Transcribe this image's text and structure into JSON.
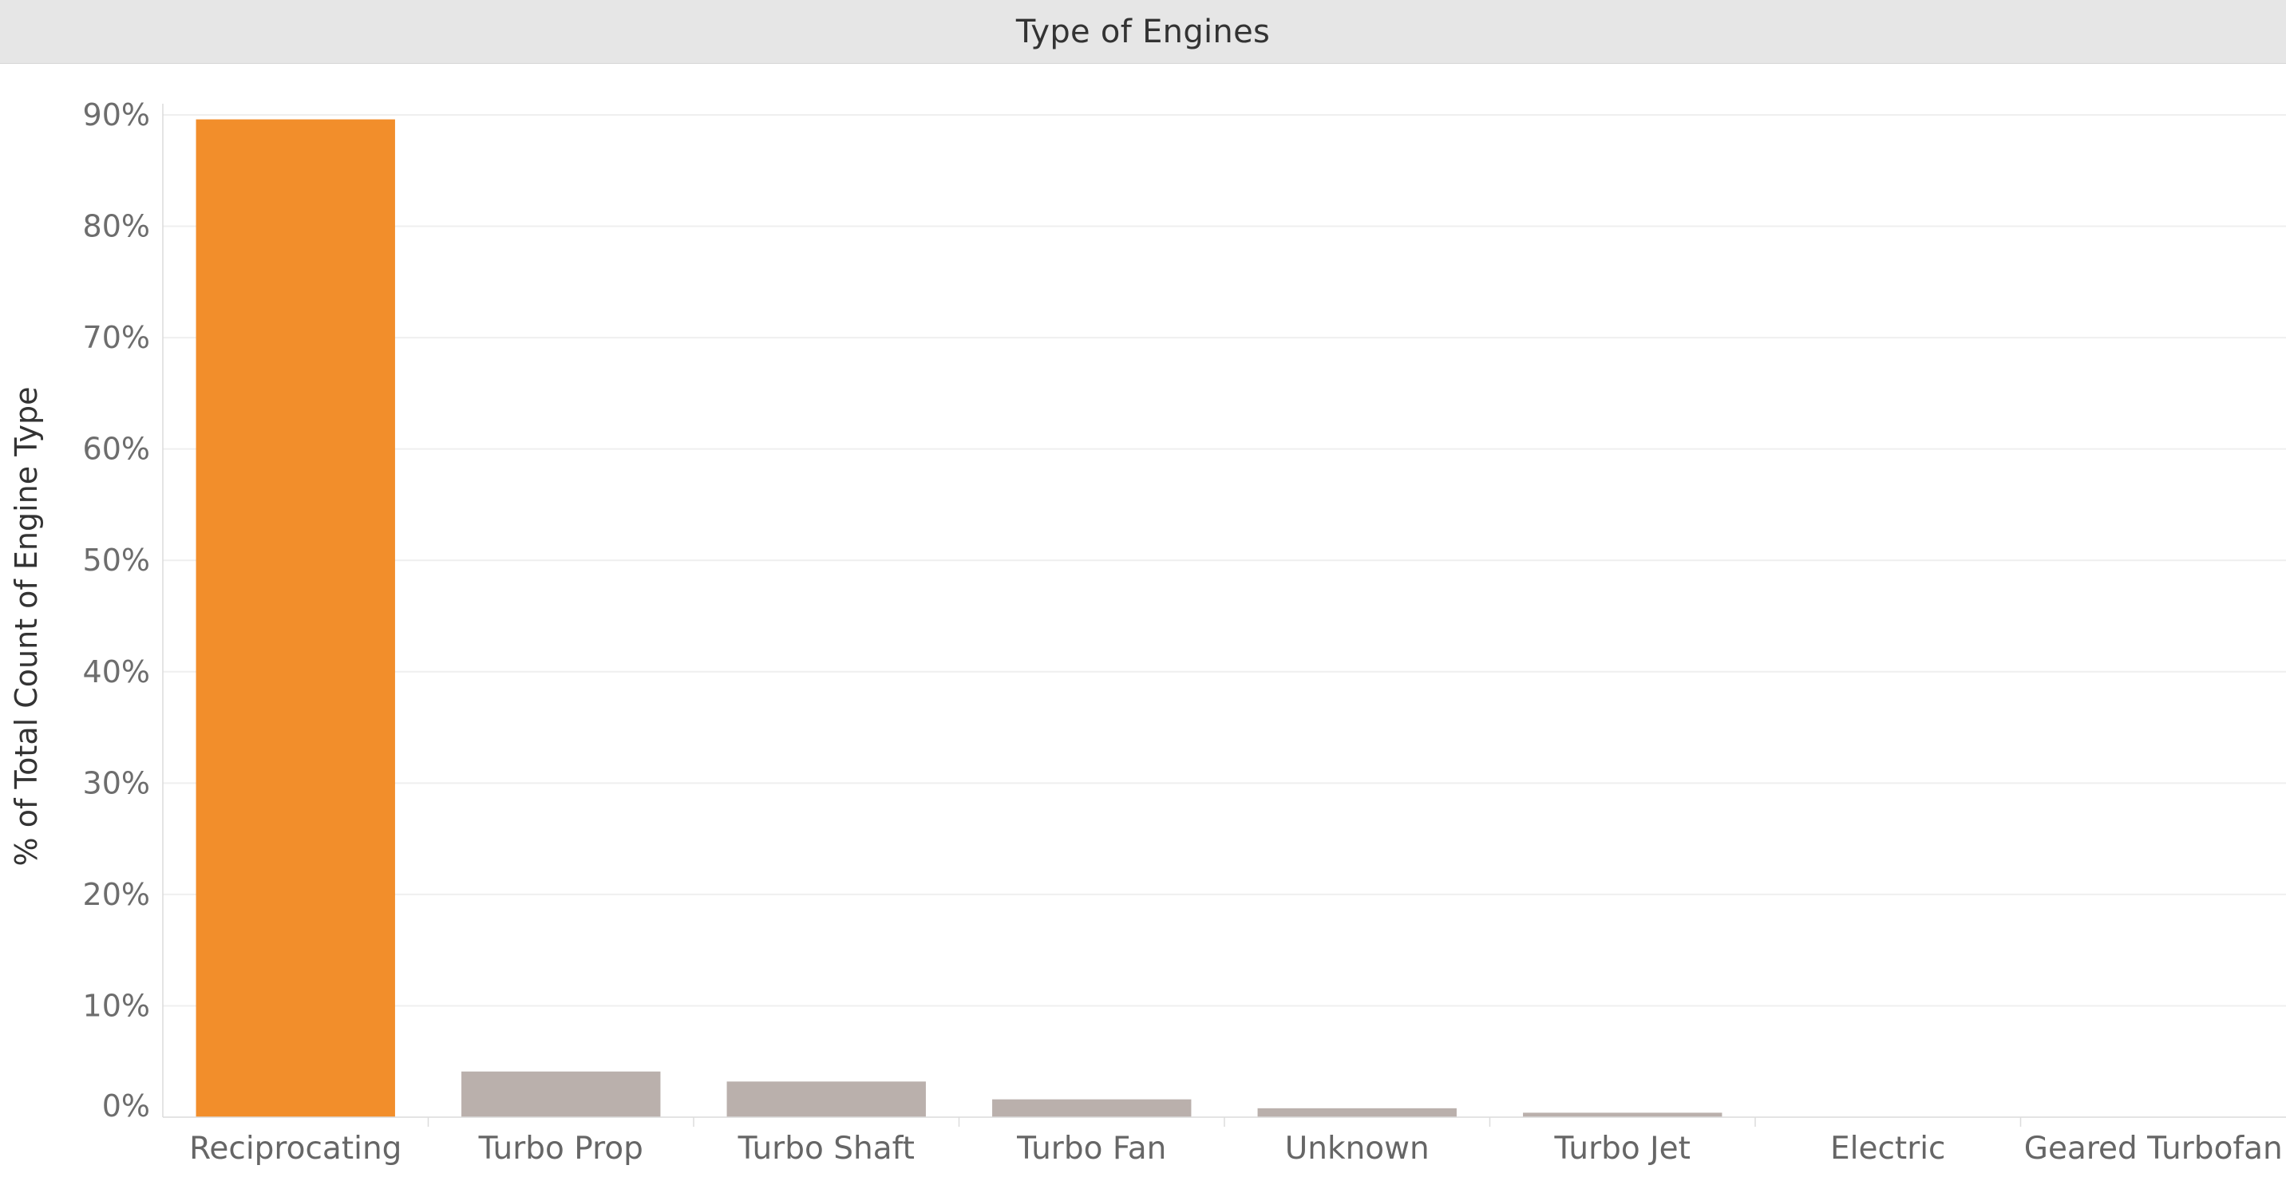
{
  "chart_data": {
    "type": "bar",
    "title": "Type of Engines",
    "ylabel": "% of Total Count of Engine Type",
    "xlabel": "",
    "categories": [
      "Reciprocating",
      "Turbo Prop",
      "Turbo Shaft",
      "Turbo Fan",
      "Unknown",
      "Turbo Jet",
      "Electric",
      "Geared Turbofan"
    ],
    "values": [
      89.6,
      4.1,
      3.2,
      1.6,
      0.8,
      0.4,
      0.03,
      0.01
    ],
    "unit": "%",
    "ylim": [
      0,
      90
    ],
    "yticks": [
      0,
      10,
      20,
      30,
      40,
      50,
      60,
      70,
      80,
      90
    ],
    "ytick_labels": [
      "0%",
      "10%",
      "20%",
      "30%",
      "40%",
      "50%",
      "60%",
      "70%",
      "80%",
      "90%"
    ],
    "grid": true,
    "legend": "none",
    "colors": {
      "highlight": "#f28e2b",
      "default": "#bab0ac",
      "title_bar": "#e6e6e6",
      "gridline": "#efefef",
      "axis": "#dcdcdc"
    },
    "highlight_index": 0
  }
}
